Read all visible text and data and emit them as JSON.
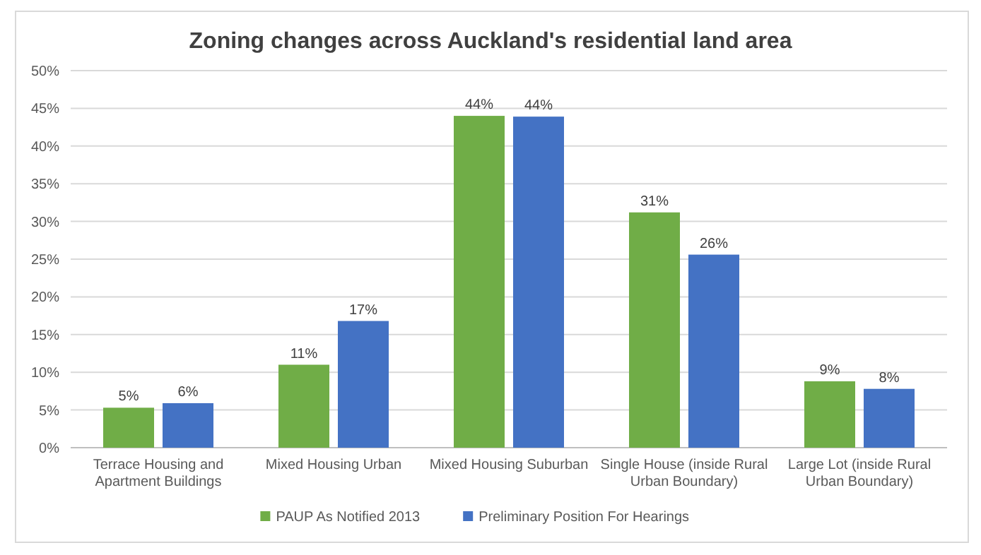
{
  "chart_data": {
    "type": "bar",
    "title": "Zoning changes across Auckland's residential land area",
    "categories": [
      "Terrace Housing and Apartment Buildings",
      "Mixed Housing Urban",
      "Mixed Housing Suburban",
      "Single House (inside Rural Urban Boundary)",
      "Large Lot (inside Rural Urban Boundary)"
    ],
    "series": [
      {
        "name": "PAUP As Notified 2013",
        "color": "#70ad47",
        "values": [
          5.3,
          11,
          44,
          31.2,
          8.8
        ],
        "value_labels": [
          "5%",
          "11%",
          "44%",
          "31%",
          "9%"
        ]
      },
      {
        "name": "Preliminary Position For Hearings",
        "color": "#4472c4",
        "values": [
          5.9,
          16.8,
          43.9,
          25.6,
          7.8
        ],
        "value_labels": [
          "6%",
          "17%",
          "44%",
          "26%",
          "8%"
        ]
      }
    ],
    "ylim": [
      0,
      50
    ],
    "yticks": [
      {
        "value": 0,
        "label": "0%"
      },
      {
        "value": 5,
        "label": "5%"
      },
      {
        "value": 10,
        "label": "10%"
      },
      {
        "value": 15,
        "label": "15%"
      },
      {
        "value": 20,
        "label": "20%"
      },
      {
        "value": 25,
        "label": "25%"
      },
      {
        "value": 30,
        "label": "30%"
      },
      {
        "value": 35,
        "label": "35%"
      },
      {
        "value": 40,
        "label": "40%"
      },
      {
        "value": 45,
        "label": "45%"
      },
      {
        "value": 50,
        "label": "50%"
      }
    ],
    "grid": "y",
    "legend": "bottom"
  }
}
